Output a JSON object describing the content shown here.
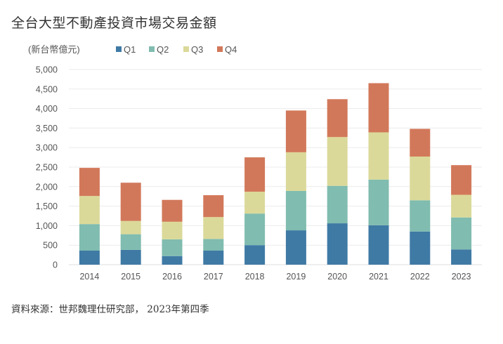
{
  "title": "全台大型不動產投資市場交易金額",
  "source": "資料來源：世邦魏理仕研究部， 2023年第四季",
  "chart_data": {
    "type": "bar",
    "stacked": true,
    "unit_label": "(新台幣億元)",
    "categories": [
      "2014",
      "2015",
      "2016",
      "2017",
      "2018",
      "2019",
      "2020",
      "2021",
      "2022",
      "2023"
    ],
    "series": [
      {
        "name": "Q1",
        "color": "#3f7aa5",
        "values": [
          360,
          380,
          220,
          360,
          500,
          880,
          1060,
          1010,
          850,
          390
        ]
      },
      {
        "name": "Q2",
        "color": "#80bcaf",
        "values": [
          680,
          400,
          430,
          300,
          810,
          1010,
          960,
          1170,
          800,
          820
        ]
      },
      {
        "name": "Q3",
        "color": "#dbd999",
        "values": [
          720,
          340,
          450,
          560,
          560,
          990,
          1250,
          1210,
          1120,
          580
        ]
      },
      {
        "name": "Q4",
        "color": "#d2785a",
        "values": [
          720,
          980,
          560,
          560,
          880,
          1070,
          970,
          1260,
          710,
          760
        ]
      }
    ],
    "ylim": [
      0,
      5000
    ],
    "yticks": [
      "0",
      "500",
      "1,000",
      "1,500",
      "2,000",
      "2,500",
      "3,000",
      "3,500",
      "4,000",
      "4,500",
      "5,000"
    ],
    "grid": true,
    "legend": "top"
  }
}
